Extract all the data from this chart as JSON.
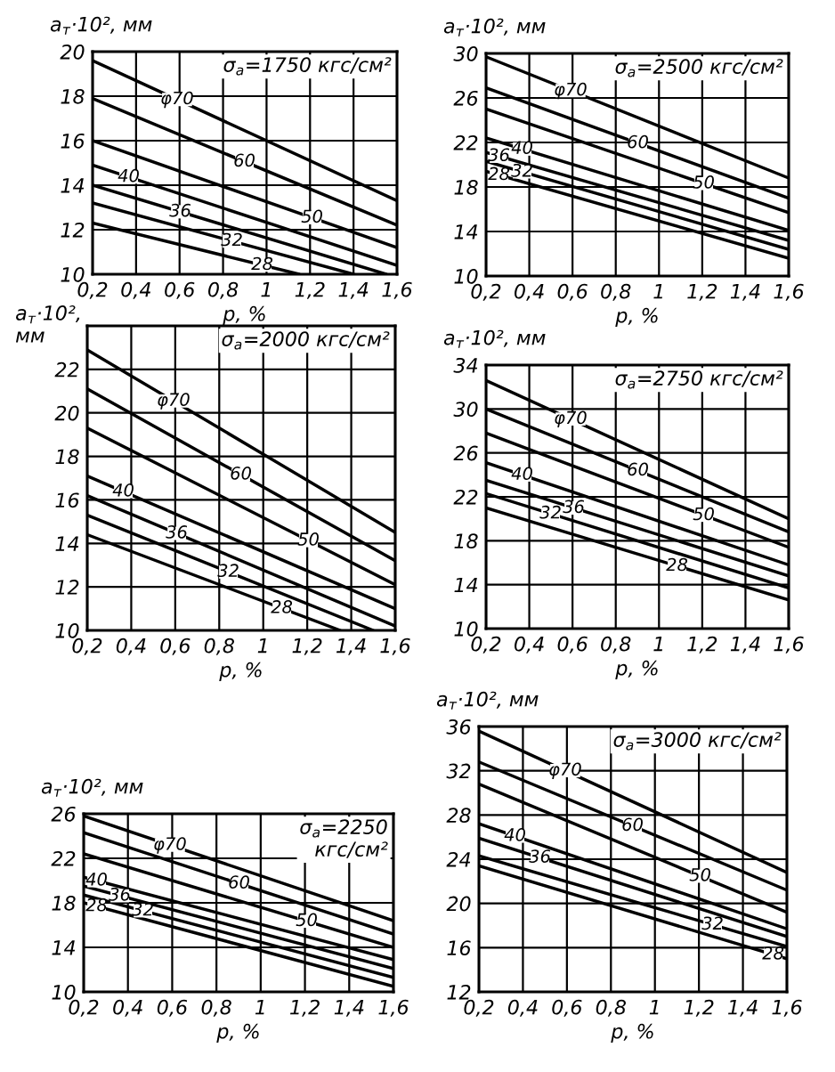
{
  "chart_data": [
    {
      "type": "line",
      "title": "σ$_{a}$=1750 кгс/см²",
      "xlabel": "p, %",
      "ylabel": "a$_{т}$·10², мм",
      "xlim": [
        0.2,
        1.6
      ],
      "ylim": [
        10,
        20
      ],
      "xticks": [
        {
          "value": 0.2,
          "label": "0,2"
        },
        {
          "value": 0.4,
          "label": "0,4"
        },
        {
          "value": 0.6,
          "label": "0,6"
        },
        {
          "value": 0.8,
          "label": "0,8"
        },
        1,
        {
          "value": 1.2,
          "label": "1,2"
        },
        {
          "value": 1.4,
          "label": "1,4"
        },
        {
          "value": 1.6,
          "label": "1,6"
        }
      ],
      "yticks": [
        10,
        12,
        14,
        16,
        18,
        20
      ],
      "grid": true,
      "series": [
        {
          "name": "φ70",
          "color": "#000000",
          "x": [
            0.2,
            1.6
          ],
          "values": [
            19.6,
            13.3
          ]
        },
        {
          "name": "60",
          "color": "#000000",
          "x": [
            0.2,
            1.6
          ],
          "values": [
            17.9,
            12.2
          ]
        },
        {
          "name": "50",
          "color": "#000000",
          "x": [
            0.2,
            1.6
          ],
          "values": [
            16.0,
            11.2
          ]
        },
        {
          "name": "40",
          "color": "#000000",
          "x": [
            0.2,
            1.6
          ],
          "values": [
            14.9,
            10.4
          ]
        },
        {
          "name": "36",
          "color": "#000000",
          "x": [
            0.2,
            1.55
          ],
          "values": [
            14.0,
            10
          ]
        },
        {
          "name": "32",
          "color": "#000000",
          "x": [
            0.2,
            1.4
          ],
          "values": [
            13.2,
            10
          ]
        },
        {
          "name": "28",
          "color": "#000000",
          "x": [
            0.2,
            1.15
          ],
          "values": [
            12.3,
            10
          ]
        }
      ]
    },
    {
      "type": "line",
      "title": "σ$_{a}$=2500 кгс/см²",
      "xlabel": "p, %",
      "ylabel": "a$_{т}$·10², мм",
      "xlim": [
        0.2,
        1.6
      ],
      "ylim": [
        10,
        30
      ],
      "xticks": [
        {
          "value": 0.2,
          "label": "0,2"
        },
        {
          "value": 0.4,
          "label": "0,4"
        },
        {
          "value": 0.6,
          "label": "0,6"
        },
        {
          "value": 0.8,
          "label": "0,8"
        },
        1,
        {
          "value": 1.2,
          "label": "1,2"
        },
        {
          "value": 1.4,
          "label": "1,4"
        },
        {
          "value": 1.6,
          "label": "1,6"
        }
      ],
      "yticks": [
        10,
        14,
        18,
        22,
        26,
        30
      ],
      "grid": true,
      "series": [
        {
          "name": "φ70",
          "color": "#000000",
          "x": [
            0.2,
            1.6
          ],
          "values": [
            29.7,
            18.8
          ]
        },
        {
          "name": "60",
          "color": "#000000",
          "x": [
            0.2,
            1.6
          ],
          "values": [
            26.9,
            17.0
          ]
        },
        {
          "name": "50",
          "color": "#000000",
          "x": [
            0.2,
            1.6
          ],
          "values": [
            25.0,
            15.7
          ]
        },
        {
          "name": "40",
          "color": "#000000",
          "x": [
            0.2,
            1.6
          ],
          "values": [
            22.4,
            14.1
          ]
        },
        {
          "name": "36",
          "color": "#000000",
          "x": [
            0.2,
            1.6
          ],
          "values": [
            21.1,
            13.2
          ]
        },
        {
          "name": "32",
          "color": "#000000",
          "x": [
            0.2,
            1.6
          ],
          "values": [
            20.3,
            12.4
          ]
        },
        {
          "name": "28",
          "color": "#000000",
          "x": [
            0.2,
            1.6
          ],
          "values": [
            19.4,
            11.6
          ]
        }
      ]
    },
    {
      "type": "line",
      "title": "σ$_{a}$=2000 кгс/см²",
      "xlabel": "p, %",
      "ylabel": "a$_{т}$·10²,\nмм",
      "xlim": [
        0.2,
        1.6
      ],
      "ylim": [
        10,
        24
      ],
      "xticks": [
        {
          "value": 0.2,
          "label": "0,2"
        },
        {
          "value": 0.4,
          "label": "0,4"
        },
        {
          "value": 0.6,
          "label": "0,6"
        },
        {
          "value": 0.8,
          "label": "0,8"
        },
        1,
        {
          "value": 1.2,
          "label": "1,2"
        },
        {
          "value": 1.4,
          "label": "1,4"
        },
        {
          "value": 1.6,
          "label": "1,6"
        }
      ],
      "yticks": [
        10,
        12,
        14,
        16,
        18,
        20,
        22,
        {
          "value": 24,
          "label": null
        }
      ],
      "grid": true,
      "series": [
        {
          "name": "φ70",
          "color": "#000000",
          "x": [
            0.2,
            1.6
          ],
          "values": [
            22.9,
            14.5
          ]
        },
        {
          "name": "60",
          "color": "#000000",
          "x": [
            0.2,
            1.6
          ],
          "values": [
            21.1,
            13.2
          ]
        },
        {
          "name": "50",
          "color": "#000000",
          "x": [
            0.2,
            1.6
          ],
          "values": [
            19.3,
            12.1
          ]
        },
        {
          "name": "40",
          "color": "#000000",
          "x": [
            0.2,
            1.6
          ],
          "values": [
            17.1,
            11.0
          ]
        },
        {
          "name": "36",
          "color": "#000000",
          "x": [
            0.2,
            1.6
          ],
          "values": [
            16.2,
            10.2
          ]
        },
        {
          "name": "32",
          "color": "#000000",
          "x": [
            0.2,
            1.5
          ],
          "values": [
            15.3,
            10
          ]
        },
        {
          "name": "28",
          "color": "#000000",
          "x": [
            0.2,
            1.35
          ],
          "values": [
            14.4,
            10
          ]
        }
      ]
    },
    {
      "type": "line",
      "title": "σ$_{a}$=2750 кгс/см²",
      "xlabel": "p, %",
      "ylabel": "a$_{т}$·10², мм",
      "xlim": [
        0.2,
        1.6
      ],
      "ylim": [
        10,
        34
      ],
      "xticks": [
        {
          "value": 0.2,
          "label": "0,2"
        },
        {
          "value": 0.4,
          "label": "0,4"
        },
        {
          "value": 0.6,
          "label": "0,6"
        },
        {
          "value": 0.8,
          "label": "0,8"
        },
        1,
        {
          "value": 1.2,
          "label": "1,2"
        },
        {
          "value": 1.4,
          "label": "1,4"
        },
        {
          "value": 1.6,
          "label": "1,6"
        }
      ],
      "yticks": [
        10,
        14,
        18,
        22,
        26,
        30,
        34
      ],
      "grid": true,
      "series": [
        {
          "name": "φ70",
          "color": "#000000",
          "x": [
            0.2,
            1.6
          ],
          "values": [
            32.6,
            20.0
          ]
        },
        {
          "name": "60",
          "color": "#000000",
          "x": [
            0.2,
            1.6
          ],
          "values": [
            30.0,
            18.8
          ]
        },
        {
          "name": "50",
          "color": "#000000",
          "x": [
            0.2,
            1.6
          ],
          "values": [
            27.8,
            17.4
          ]
        },
        {
          "name": "40",
          "color": "#000000",
          "x": [
            0.2,
            1.6
          ],
          "values": [
            25.1,
            15.8
          ]
        },
        {
          "name": "36",
          "color": "#000000",
          "x": [
            0.2,
            1.6
          ],
          "values": [
            23.5,
            14.8
          ]
        },
        {
          "name": "32",
          "color": "#000000",
          "x": [
            0.2,
            1.6
          ],
          "values": [
            22.3,
            13.7
          ]
        },
        {
          "name": "28",
          "color": "#000000",
          "x": [
            0.2,
            1.6
          ],
          "values": [
            21.0,
            12.6
          ]
        }
      ]
    },
    {
      "type": "line",
      "title": "σ$_{a}$=2250\nкгс/см²",
      "xlabel": "p, %",
      "ylabel": "a$_{т}$·10², мм",
      "xlim": [
        0.2,
        1.6
      ],
      "ylim": [
        10,
        26
      ],
      "xticks": [
        {
          "value": 0.2,
          "label": "0,2"
        },
        {
          "value": 0.4,
          "label": "0,4"
        },
        {
          "value": 0.6,
          "label": "0,6"
        },
        {
          "value": 0.8,
          "label": "0,8"
        },
        1,
        {
          "value": 1.2,
          "label": "1,2"
        },
        {
          "value": 1.4,
          "label": "1,4"
        },
        {
          "value": 1.6,
          "label": "1,6"
        }
      ],
      "yticks": [
        10,
        14,
        18,
        22,
        26
      ],
      "grid": true,
      "series": [
        {
          "name": "φ70",
          "color": "#000000",
          "x": [
            0.2,
            1.6
          ],
          "values": [
            25.8,
            16.4
          ]
        },
        {
          "name": "60",
          "color": "#000000",
          "x": [
            0.2,
            1.6
          ],
          "values": [
            24.3,
            15.2
          ]
        },
        {
          "name": "50",
          "color": "#000000",
          "x": [
            0.2,
            1.6
          ],
          "values": [
            22.4,
            14.0
          ]
        },
        {
          "name": "40",
          "color": "#000000",
          "x": [
            0.2,
            1.6
          ],
          "values": [
            20.3,
            12.9
          ]
        },
        {
          "name": "36",
          "color": "#000000",
          "x": [
            0.2,
            1.6
          ],
          "values": [
            19.5,
            12.1
          ]
        },
        {
          "name": "32",
          "color": "#000000",
          "x": [
            0.2,
            1.6
          ],
          "values": [
            18.7,
            11.3
          ]
        },
        {
          "name": "28",
          "color": "#000000",
          "x": [
            0.2,
            1.6
          ],
          "values": [
            18.0,
            10.5
          ]
        }
      ]
    },
    {
      "type": "line",
      "title": "σ$_{a}$=3000 кгс/см²",
      "xlabel": "p, %",
      "ylabel": "a$_{т}$·10², мм",
      "xlim": [
        0.2,
        1.6
      ],
      "ylim": [
        12,
        36
      ],
      "xticks": [
        {
          "value": 0.2,
          "label": "0,2"
        },
        {
          "value": 0.4,
          "label": "0,4"
        },
        {
          "value": 0.6,
          "label": "0,6"
        },
        {
          "value": 0.8,
          "label": "0,8"
        },
        1,
        {
          "value": 1.2,
          "label": "1,2"
        },
        {
          "value": 1.4,
          "label": "1,4"
        },
        {
          "value": 1.6,
          "label": "1,6"
        }
      ],
      "yticks": [
        12,
        16,
        20,
        24,
        28,
        32,
        36
      ],
      "grid": true,
      "series": [
        {
          "name": "φ70",
          "color": "#000000",
          "x": [
            0.2,
            1.6
          ],
          "values": [
            35.6,
            22.8
          ]
        },
        {
          "name": "60",
          "color": "#000000",
          "x": [
            0.2,
            1.6
          ],
          "values": [
            32.8,
            21.2
          ]
        },
        {
          "name": "50",
          "color": "#000000",
          "x": [
            0.2,
            1.6
          ],
          "values": [
            30.8,
            19.2
          ]
        },
        {
          "name": "40",
          "color": "#000000",
          "x": [
            0.2,
            1.6
          ],
          "values": [
            27.2,
            17.7
          ]
        },
        {
          "name": "36",
          "color": "#000000",
          "x": [
            0.2,
            1.6
          ],
          "values": [
            25.9,
            17.0
          ]
        },
        {
          "name": "32",
          "color": "#000000",
          "x": [
            0.2,
            1.6
          ],
          "values": [
            24.3,
            16.1
          ]
        },
        {
          "name": "28",
          "color": "#000000",
          "x": [
            0.2,
            1.6
          ],
          "values": [
            23.4,
            15.0
          ]
        }
      ]
    }
  ]
}
